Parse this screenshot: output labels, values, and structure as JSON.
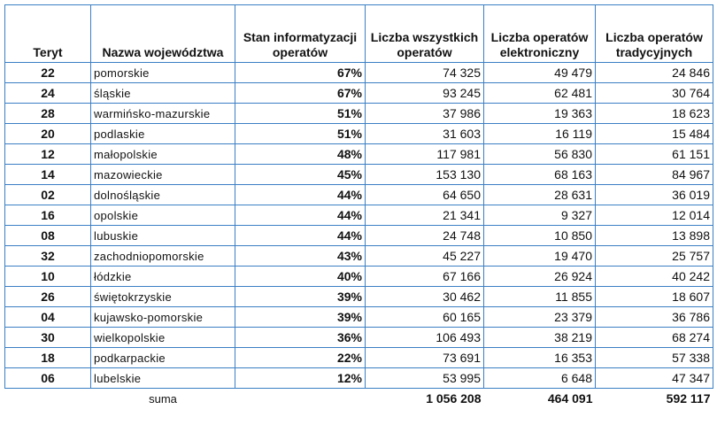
{
  "headers": [
    "Teryt",
    "Nazwa województwa",
    "Stan informatyzacji operatów",
    "Liczba wszystkich operatów",
    "Liczba operatów elektroniczny",
    "Liczba operatów tradycyjnych"
  ],
  "rows": [
    [
      "22",
      "pomorskie",
      "67%",
      "74 325",
      "49 479",
      "24 846"
    ],
    [
      "24",
      "śląskie",
      "67%",
      "93 245",
      "62 481",
      "30 764"
    ],
    [
      "28",
      "warmińsko-mazurskie",
      "51%",
      "37 986",
      "19 363",
      "18 623"
    ],
    [
      "20",
      "podlaskie",
      "51%",
      "31 603",
      "16 119",
      "15 484"
    ],
    [
      "12",
      "małopolskie",
      "48%",
      "117 981",
      "56 830",
      "61 151"
    ],
    [
      "14",
      "mazowieckie",
      "45%",
      "153 130",
      "68 163",
      "84 967"
    ],
    [
      "02",
      "dolnośląskie",
      "44%",
      "64 650",
      "28 631",
      "36 019"
    ],
    [
      "16",
      "opolskie",
      "44%",
      "21 341",
      "9 327",
      "12 014"
    ],
    [
      "08",
      "lubuskie",
      "44%",
      "24 748",
      "10 850",
      "13 898"
    ],
    [
      "32",
      "zachodniopomorskie",
      "43%",
      "45 227",
      "19 470",
      "25 757"
    ],
    [
      "10",
      "łódzkie",
      "40%",
      "67 166",
      "26 924",
      "40 242"
    ],
    [
      "26",
      "świętokrzyskie",
      "39%",
      "30 462",
      "11 855",
      "18 607"
    ],
    [
      "04",
      "kujawsko-pomorskie",
      "39%",
      "60 165",
      "23 379",
      "36 786"
    ],
    [
      "30",
      "wielkopolskie",
      "36%",
      "106 493",
      "38 219",
      "68 274"
    ],
    [
      "18",
      "podkarpackie",
      "22%",
      "73 691",
      "16 353",
      "57 338"
    ],
    [
      "06",
      "lubelskie",
      "12%",
      "53 995",
      "6 648",
      "47 347"
    ]
  ],
  "summary": {
    "label": "suma",
    "total": "1 056 208",
    "electronic": "464 091",
    "traditional": "592 117"
  },
  "colors": {
    "border": "#3b7fc4"
  }
}
